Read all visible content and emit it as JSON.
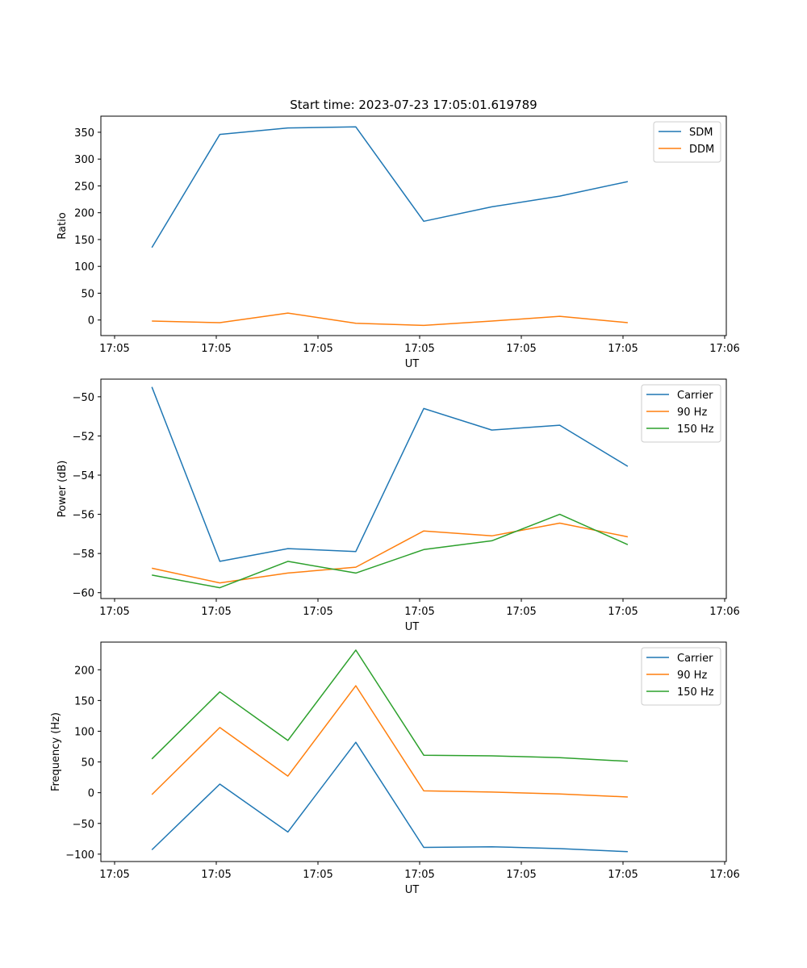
{
  "chart_data": [
    {
      "type": "line",
      "title": "Start time: 2023-07-23 17:05:01.619789",
      "xlabel": "UT",
      "ylabel": "Ratio",
      "x_tick_labels": [
        "17:05",
        "17:05",
        "17:05",
        "17:05",
        "17:05",
        "17:05",
        "17:05",
        "17:06"
      ],
      "x": [
        1,
        2,
        3,
        4,
        5,
        6,
        7,
        8
      ],
      "xlim": [
        0.25,
        9.45
      ],
      "ylim": [
        -29,
        380
      ],
      "y_ticks": [
        0,
        50,
        100,
        150,
        200,
        250,
        300,
        350
      ],
      "legend_position": "top-right",
      "series": [
        {
          "name": "SDM",
          "color": "#1f77b4",
          "values": [
            135,
            346,
            358,
            360,
            184,
            211,
            231,
            258
          ]
        },
        {
          "name": "DDM",
          "color": "#ff7f0e",
          "values": [
            -2,
            -5,
            13,
            -6,
            -10,
            -2,
            7,
            -5
          ]
        }
      ]
    },
    {
      "type": "line",
      "title": "",
      "xlabel": "UT",
      "ylabel": "Power (dB)",
      "x_tick_labels": [
        "17:05",
        "17:05",
        "17:05",
        "17:05",
        "17:05",
        "17:05",
        "17:05",
        "17:06"
      ],
      "x": [
        1,
        2,
        3,
        4,
        5,
        6,
        7,
        8
      ],
      "xlim": [
        0.25,
        9.45
      ],
      "ylim": [
        -60.3,
        -49.1
      ],
      "y_ticks": [
        -50,
        -52,
        -54,
        -56,
        -58,
        -60
      ],
      "legend_position": "top-right",
      "series": [
        {
          "name": "Carrier",
          "color": "#1f77b4",
          "values": [
            -49.5,
            -58.4,
            -57.75,
            -57.9,
            -50.6,
            -51.7,
            -51.45,
            -53.55
          ]
        },
        {
          "name": "90 Hz",
          "color": "#ff7f0e",
          "values": [
            -58.75,
            -59.5,
            -59.0,
            -58.7,
            -56.85,
            -57.1,
            -56.45,
            -57.15
          ]
        },
        {
          "name": "150 Hz",
          "color": "#2ca02c",
          "values": [
            -59.1,
            -59.75,
            -58.4,
            -59.0,
            -57.8,
            -57.35,
            -56.0,
            -57.55
          ]
        }
      ]
    },
    {
      "type": "line",
      "title": "",
      "xlabel": "UT",
      "ylabel": "Frequency (Hz)",
      "x_tick_labels": [
        "17:05",
        "17:05",
        "17:05",
        "17:05",
        "17:05",
        "17:05",
        "17:05",
        "17:06"
      ],
      "x": [
        1,
        2,
        3,
        4,
        5,
        6,
        7,
        8
      ],
      "xlim": [
        0.25,
        9.45
      ],
      "ylim": [
        -112,
        245
      ],
      "y_ticks": [
        200,
        150,
        100,
        50,
        0,
        -50,
        -100
      ],
      "legend_position": "top-right",
      "series": [
        {
          "name": "Carrier",
          "color": "#1f77b4",
          "values": [
            -93,
            14,
            -64,
            82,
            -89,
            -88,
            -91,
            -96
          ]
        },
        {
          "name": "90 Hz",
          "color": "#ff7f0e",
          "values": [
            -3,
            106,
            27,
            174,
            3,
            1,
            -2,
            -7
          ]
        },
        {
          "name": "150 Hz",
          "color": "#2ca02c",
          "values": [
            55,
            164,
            85,
            232,
            61,
            60,
            57,
            51
          ]
        }
      ]
    }
  ]
}
